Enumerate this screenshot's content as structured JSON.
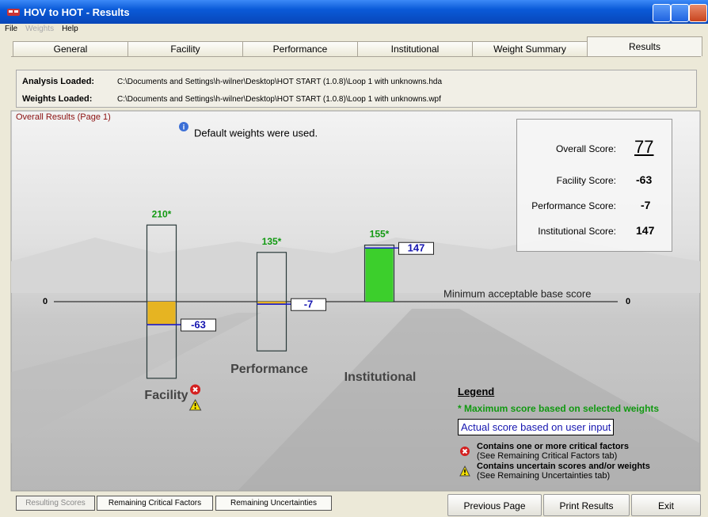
{
  "window": {
    "title": "HOV to HOT - Results"
  },
  "menu": [
    "File",
    "Weights",
    "Help"
  ],
  "tabs": [
    "General",
    "Facility",
    "Performance",
    "Institutional",
    "Weight Summary",
    "Results"
  ],
  "files": [
    {
      "label": "Analysis Loaded:",
      "path": "C:\\Documents and Settings\\h-wilner\\Desktop\\HOT START (1.0.8)\\Loop 1 with unknowns.hda"
    },
    {
      "label": "Weights Loaded:",
      "path": "C:\\Documents and Settings\\h-wilner\\Desktop\\HOT START (1.0.8)\\Loop 1 with unknowns.wpf"
    }
  ],
  "section_title": "Overall Results (Page 1)",
  "note": "Default weights were used.",
  "chart_data": {
    "type": "bar",
    "categories": [
      "Facility",
      "Performance",
      "Institutional"
    ],
    "values": [
      -63,
      -7,
      147
    ],
    "max": [
      210,
      135,
      155
    ],
    "max_labels": [
      "210*",
      "135*",
      "155*"
    ],
    "min": [
      -210,
      -135,
      0
    ],
    "colors": [
      "#e6b422",
      "#e6b422",
      "#3ccf2c"
    ],
    "critical": [
      true,
      false,
      false
    ],
    "uncertain": [
      true,
      false,
      false
    ],
    "ylim": [
      -230,
      230
    ],
    "yticks": [
      0
    ],
    "reference_label": "Minimum acceptable base score"
  },
  "score_panel": [
    {
      "label": "Overall Score:",
      "value": 77
    },
    {
      "label": "Facility Score:",
      "value": -63
    },
    {
      "label": "Performance Score:",
      "value": -7
    },
    {
      "label": "Institutional Score:",
      "value": 147
    }
  ],
  "legend": {
    "title": "Legend",
    "max_note": "* Maximum score based on selected weights",
    "actual_note": "Actual score based on user input",
    "critical": {
      "text": "Contains one or more critical factors",
      "hint": "(See Remaining Critical Factors tab)"
    },
    "uncertain": {
      "text": "Contains uncertain scores and/or weights",
      "hint": "(See Remaining Uncertainties tab)"
    }
  },
  "bottom_tabs": [
    "Resulting Scores",
    "Remaining Critical Factors",
    "Remaining Uncertainties"
  ],
  "buttons": [
    "Previous Page",
    "Print Results",
    "Exit"
  ]
}
